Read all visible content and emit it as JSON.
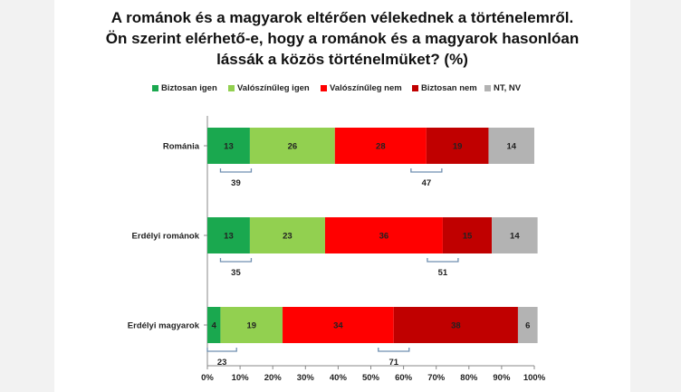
{
  "title_lines": [
    "A románok és a magyarok eltérően vélekednek a történelemről.",
    "Ön szerint elérhető-e, hogy a románok és a magyarok hasonlóan",
    "lássák a közös történelmüket? (%)"
  ],
  "chart_data": {
    "type": "bar",
    "orientation": "horizontal",
    "stacked": true,
    "categories": [
      "Románia",
      "Erdélyi románok",
      "Erdélyi magyarok"
    ],
    "series": [
      {
        "name": "Biztosan igen",
        "values": [
          13,
          13,
          4
        ],
        "color": "#1aa84f"
      },
      {
        "name": "Valószínűleg igen",
        "values": [
          26,
          23,
          19
        ],
        "color": "#92d050"
      },
      {
        "name": "Valószínűleg nem",
        "values": [
          28,
          36,
          34
        ],
        "color": "#ff0000"
      },
      {
        "name": "Biztosan nem",
        "values": [
          19,
          15,
          38
        ],
        "color": "#c00000"
      },
      {
        "name": "NT, NV",
        "values": [
          14,
          14,
          6
        ],
        "color": "#b3b3b3"
      }
    ],
    "bracket_totals": [
      {
        "yes": 39,
        "no": 47
      },
      {
        "yes": 35,
        "no": 51
      },
      {
        "yes": 23,
        "no": 71
      }
    ],
    "x_ticks": [
      "0%",
      "10%",
      "20%",
      "30%",
      "40%",
      "50%",
      "60%",
      "70%",
      "80%",
      "90%",
      "100%"
    ],
    "xlim": [
      0,
      100
    ],
    "legend_position": "top",
    "grid": false
  }
}
